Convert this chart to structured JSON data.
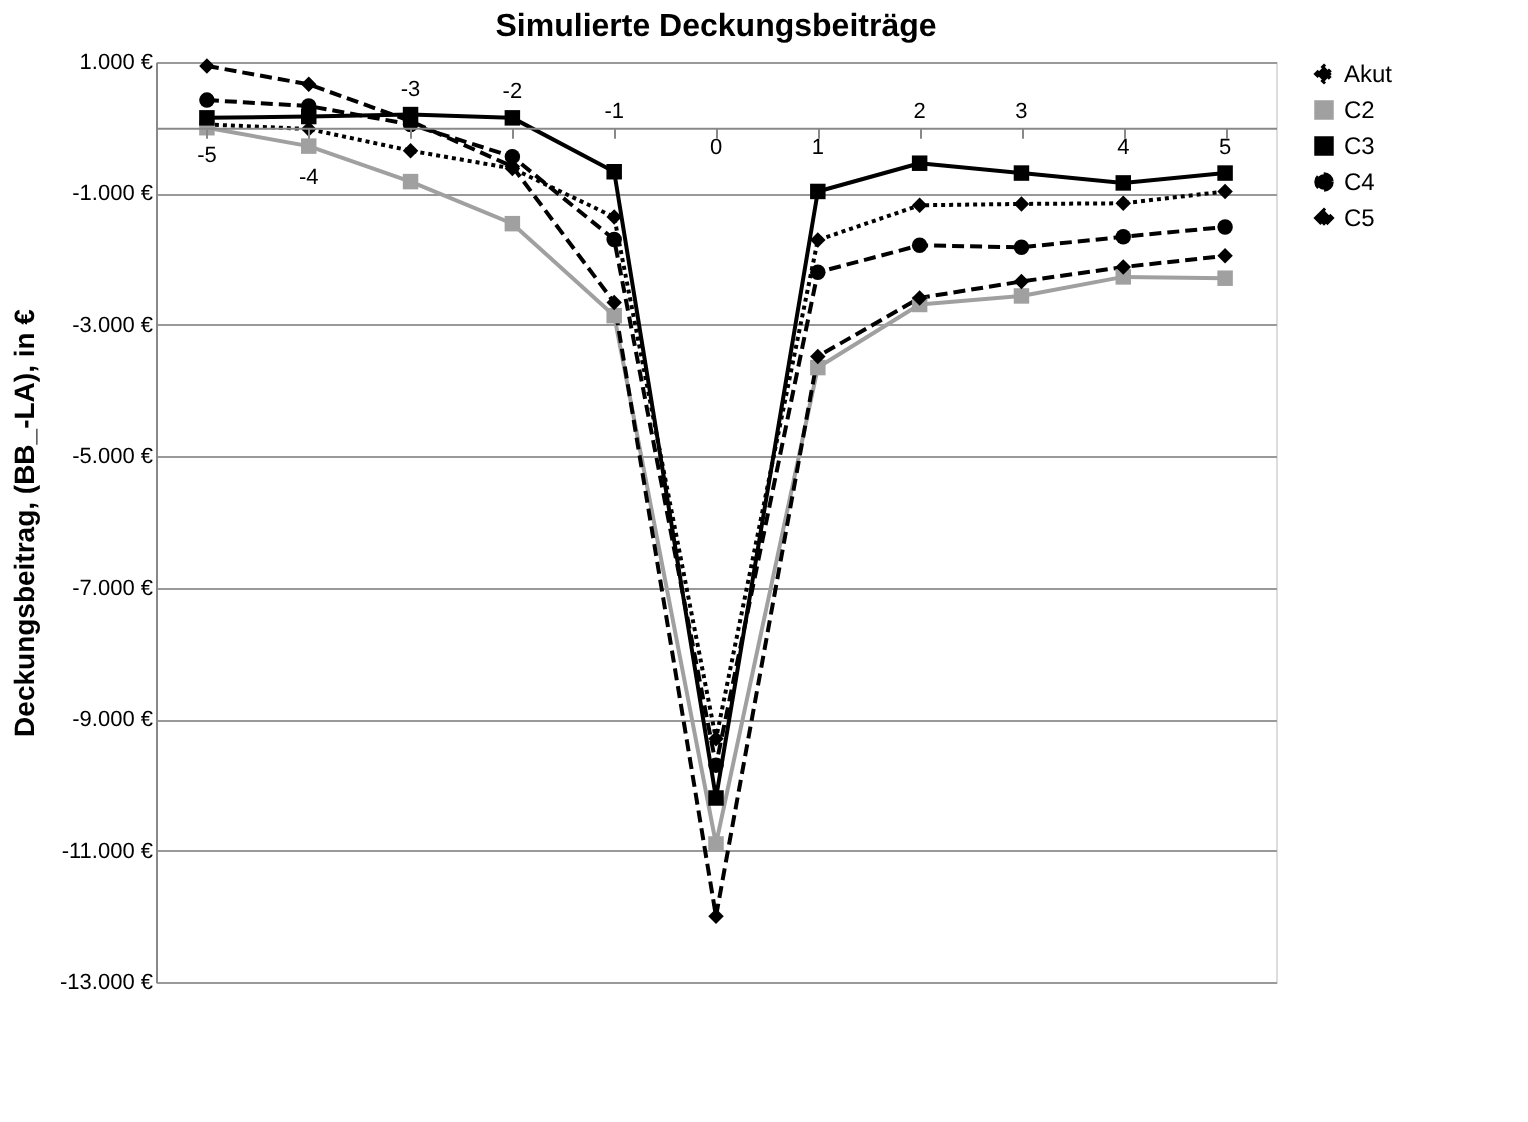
{
  "chart_data": {
    "type": "line",
    "title": "Simulierte Deckungsbeiträge",
    "ylabel": "Deckungsbeitrag, (BB_-LA), in €",
    "categories": [
      "-5",
      "-4",
      "-3",
      "-2",
      "-1",
      "0",
      "1",
      "2",
      "3",
      "4",
      "5"
    ],
    "series": [
      {
        "name": "Akut",
        "color": "#000000",
        "line_style": "dotted",
        "marker": "diamond",
        "values": [
          50,
          -20,
          -350,
          -620,
          -1360,
          -9300,
          -1710,
          -1180,
          -1160,
          -1150,
          -970
        ]
      },
      {
        "name": "C2",
        "color": "#a0a0a0",
        "line_style": "solid",
        "marker": "square",
        "values": [
          0,
          -280,
          -820,
          -1460,
          -2860,
          -10900,
          -3650,
          -2690,
          -2560,
          -2270,
          -2290
        ]
      },
      {
        "name": "C3",
        "color": "#000000",
        "line_style": "solid",
        "marker": "square",
        "values": [
          150,
          170,
          200,
          150,
          -670,
          -10200,
          -970,
          -540,
          -690,
          -840,
          -690
        ]
      },
      {
        "name": "C4",
        "color": "#000000",
        "line_style": "dashed",
        "marker": "circle",
        "values": [
          420,
          330,
          50,
          -440,
          -1700,
          -9700,
          -2200,
          -1790,
          -1820,
          -1660,
          -1510
        ]
      },
      {
        "name": "C5",
        "color": "#000000",
        "line_style": "dashed",
        "marker": "diamond",
        "values": [
          940,
          660,
          100,
          -590,
          -2660,
          -12000,
          -3480,
          -2590,
          -2340,
          -2120,
          -1950
        ]
      }
    ],
    "ylim": [
      -13000,
      1000
    ],
    "yticks": [
      {
        "value": 1000,
        "label": "1.000 €"
      },
      {
        "value": -1000,
        "label": "-1.000 €"
      },
      {
        "value": -3000,
        "label": "-3.000 €"
      },
      {
        "value": -5000,
        "label": "-5.000 €"
      },
      {
        "value": -7000,
        "label": "-7.000 €"
      },
      {
        "value": -9000,
        "label": "-9.000 €"
      },
      {
        "value": -11000,
        "label": "-11.000 €"
      },
      {
        "value": -13000,
        "label": "-13.000 €"
      }
    ],
    "grid": "y",
    "legend": "right"
  }
}
